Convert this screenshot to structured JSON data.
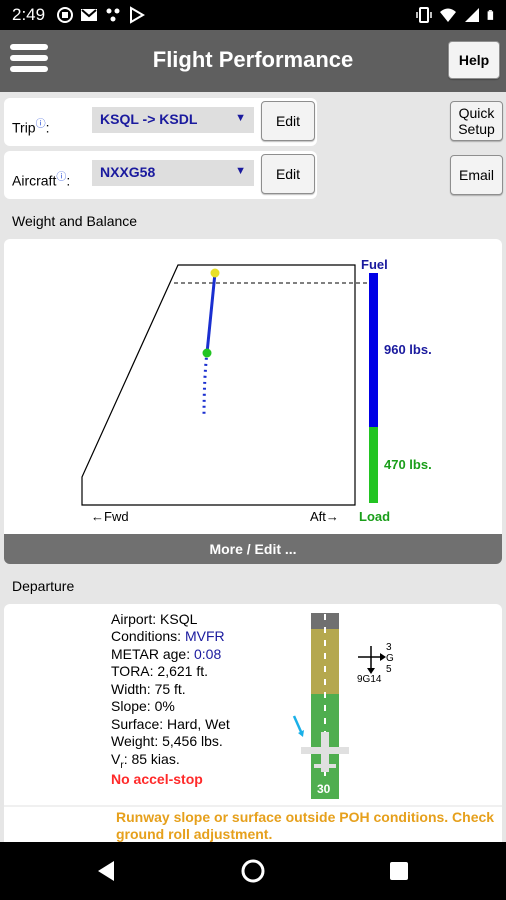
{
  "status": {
    "time": "2:49"
  },
  "appbar": {
    "title": "Flight Performance",
    "help_label": "Help"
  },
  "trip": {
    "label": "Trip",
    "info_mark": "ⓘ",
    "value": "KSQL -> KSDL",
    "edit_label": "Edit"
  },
  "aircraft": {
    "label": "Aircraft",
    "info_mark": "ⓘ",
    "value": "NXXG58",
    "edit_label": "Edit"
  },
  "side_buttons": {
    "quick_setup_line1": "Quick",
    "quick_setup_line2": "Setup",
    "email_label": "Email"
  },
  "weight_balance": {
    "section_title": "Weight and Balance",
    "fuel_label": "Fuel",
    "fuel_weight": "960 lbs.",
    "load_weight": "470 lbs.",
    "load_label": "Load",
    "fwd_label": "←Fwd",
    "aft_label": "Aft→",
    "more_edit_label": "More / Edit ...",
    "colors": {
      "fuel": "#0000e6",
      "load": "#22c422",
      "path": "#1a2fd0",
      "start": "#e8e02a",
      "end": "#22c422"
    }
  },
  "departure": {
    "section_title": "Departure",
    "airport": "Airport: KSQL",
    "conditions_label": "Conditions: ",
    "conditions_value": "MVFR",
    "metar_label": "METAR age: ",
    "metar_value": "0:08",
    "tora": "TORA: 2,621 ft.",
    "width": "Width: 75 ft.",
    "slope": "Slope: 0%",
    "surface": "Surface: Hard, Wet",
    "weight": "Weight: 5,456 lbs.",
    "vr_prefix": "V",
    "vr_sub": "r",
    "vr_value": ": 85 kias.",
    "accel_stop": "No accel-stop",
    "runway_number": "30",
    "wind_top": "3",
    "wind_g": "G",
    "wind_right": "5",
    "wind_bottom": "9G14",
    "warning": "Runway slope or surface outside POH conditions. Check ground roll adjustment."
  }
}
